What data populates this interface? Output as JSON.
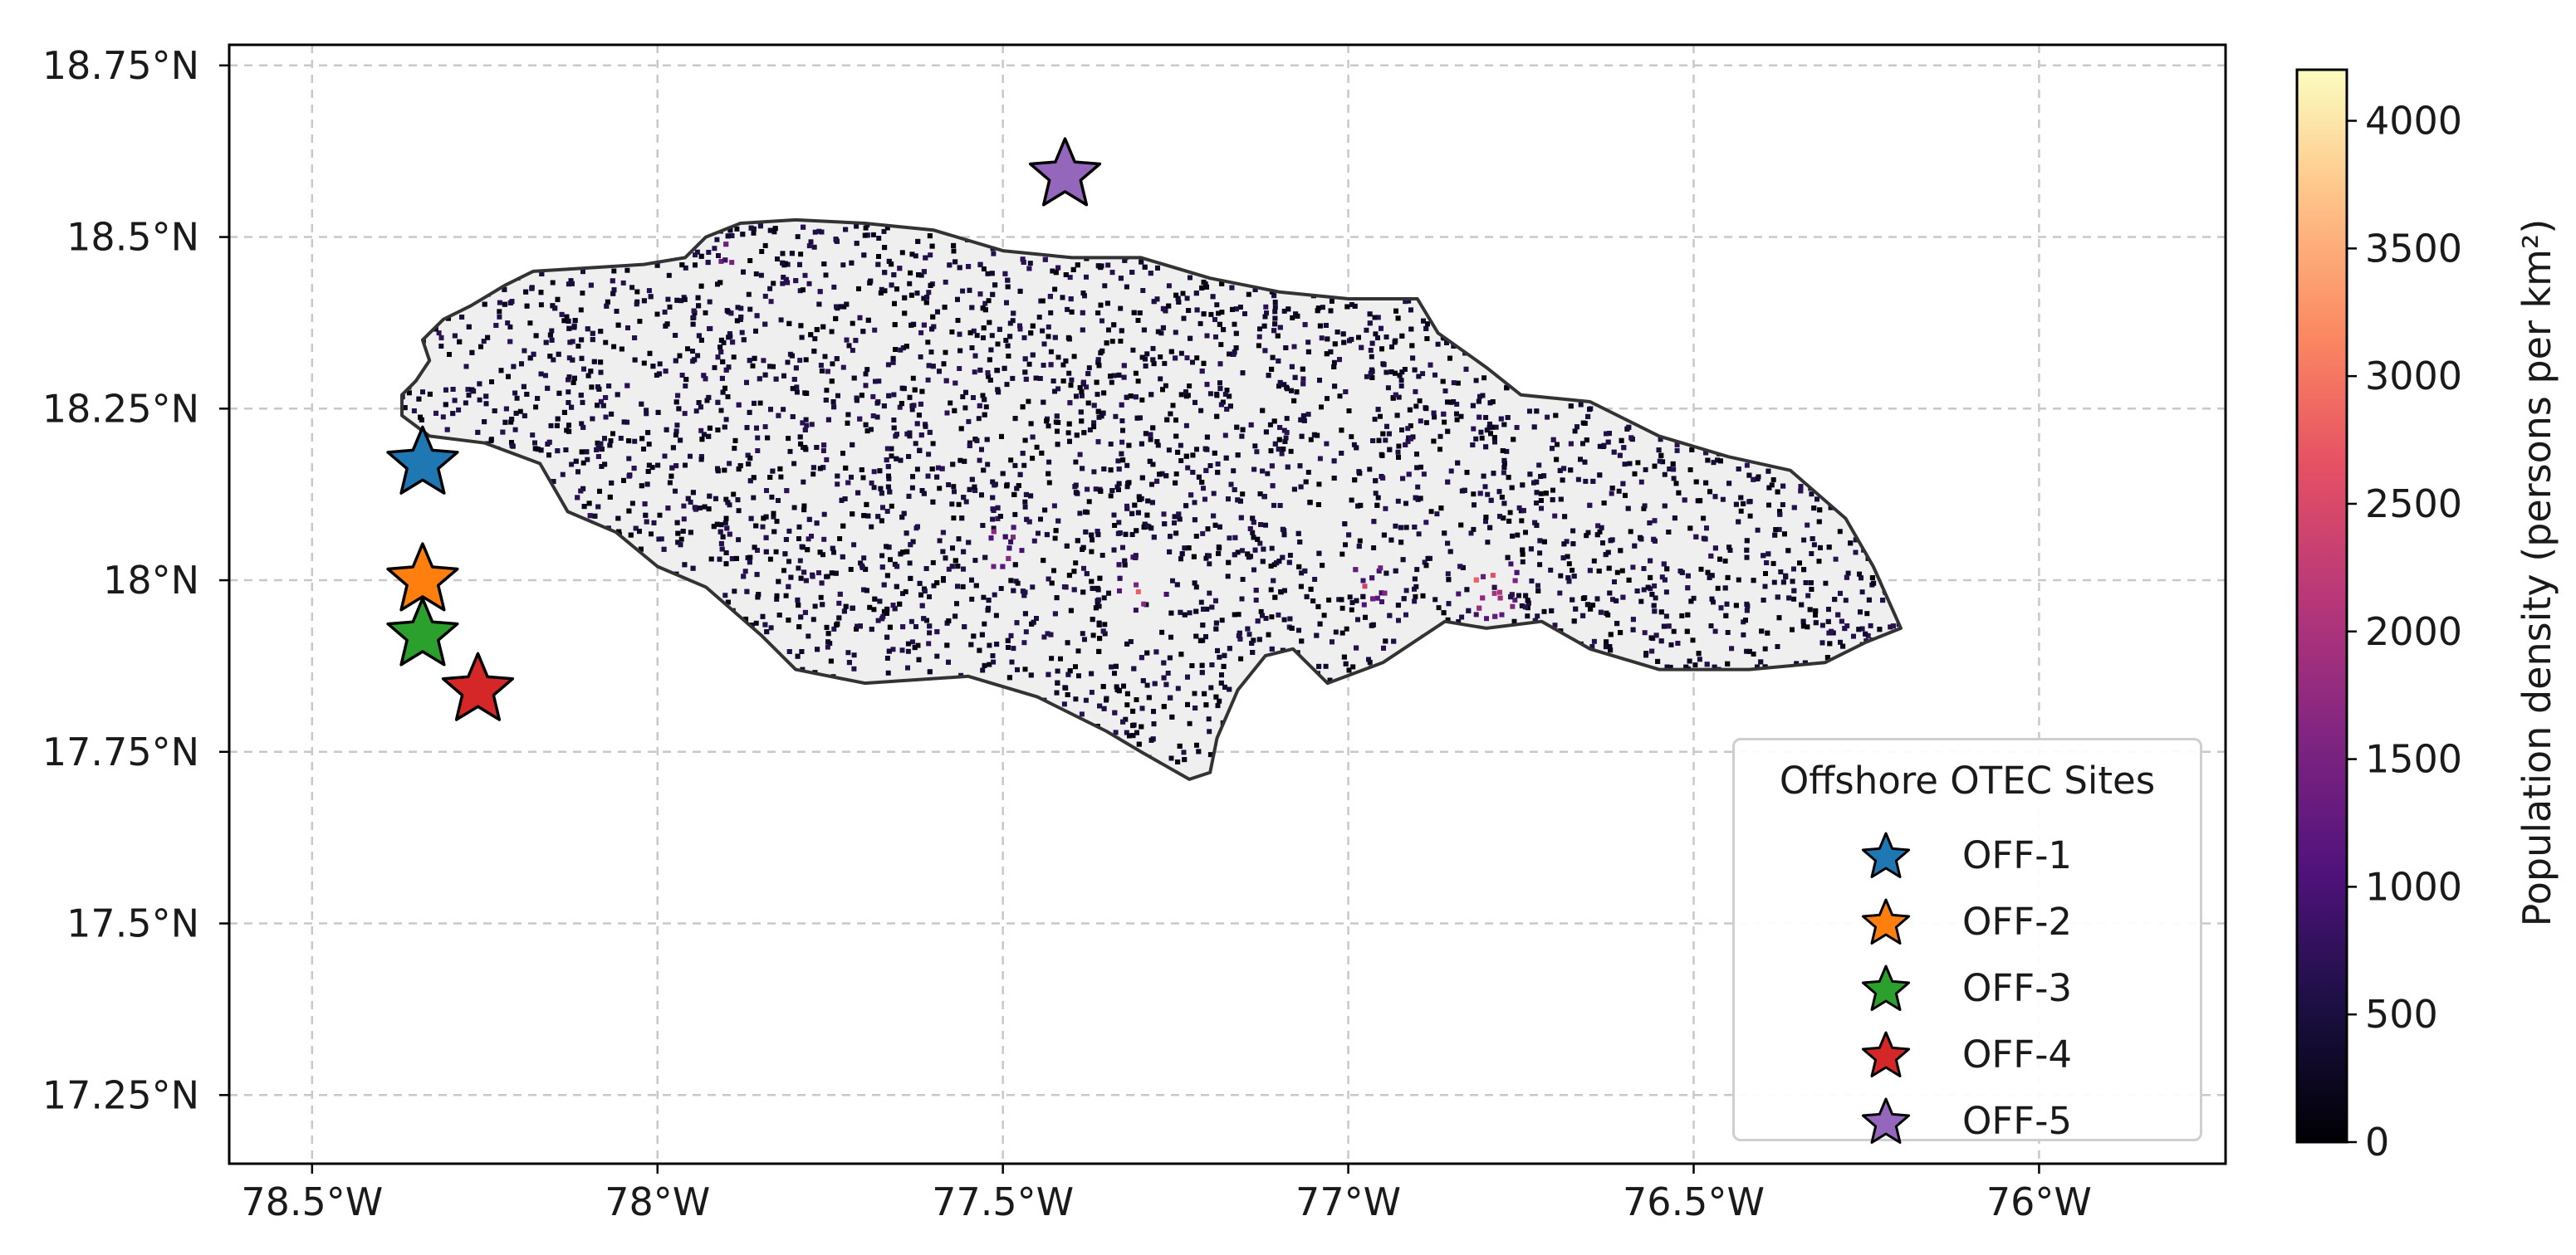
{
  "map": {
    "y_ticks": [
      {
        "value": 18.75,
        "label": "18.75°N"
      },
      {
        "value": 18.5,
        "label": "18.5°N"
      },
      {
        "value": 18.25,
        "label": "18.25°N"
      },
      {
        "value": 18.0,
        "label": "18°N"
      },
      {
        "value": 17.75,
        "label": "17.75°N"
      },
      {
        "value": 17.5,
        "label": "17.5°N"
      },
      {
        "value": 17.25,
        "label": "17.25°N"
      }
    ],
    "x_ticks": [
      {
        "value": -78.5,
        "label": "78.5°W"
      },
      {
        "value": -78.0,
        "label": "78°W"
      },
      {
        "value": -77.5,
        "label": "77.5°W"
      },
      {
        "value": -77.0,
        "label": "77°W"
      },
      {
        "value": -76.5,
        "label": "76.5°W"
      },
      {
        "value": -76.0,
        "label": "76°W"
      }
    ],
    "lon_range": [
      -78.62,
      -75.73
    ],
    "lat_range": [
      17.15,
      18.78
    ],
    "grid": true,
    "land_color": "#efefef",
    "coast_color": "#333333"
  },
  "sites": [
    {
      "name": "OFF-1",
      "lon": -78.34,
      "lat": 18.17,
      "color": "#1f77b4"
    },
    {
      "name": "OFF-2",
      "lon": -78.34,
      "lat": 18.0,
      "color": "#ff7f0e"
    },
    {
      "name": "OFF-3",
      "lon": -78.34,
      "lat": 17.92,
      "color": "#2ca02c"
    },
    {
      "name": "OFF-4",
      "lon": -78.26,
      "lat": 17.84,
      "color": "#d62728"
    },
    {
      "name": "OFF-5",
      "lon": -77.41,
      "lat": 18.59,
      "color": "#9467bd"
    }
  ],
  "legend": {
    "title": "Offshore OTEC Sites",
    "location": "lower-right"
  },
  "colorbar": {
    "title": "Population density (persons per km²)",
    "min": 0,
    "max": 4200,
    "colormap": "magma",
    "ticks": [
      {
        "value": 0,
        "label": "0"
      },
      {
        "value": 500,
        "label": "500"
      },
      {
        "value": 1000,
        "label": "1000"
      },
      {
        "value": 1500,
        "label": "1500"
      },
      {
        "value": 2000,
        "label": "2000"
      },
      {
        "value": 2500,
        "label": "2500"
      },
      {
        "value": 3000,
        "label": "3000"
      },
      {
        "value": 3500,
        "label": "3500"
      },
      {
        "value": 4000,
        "label": "4000"
      }
    ]
  }
}
